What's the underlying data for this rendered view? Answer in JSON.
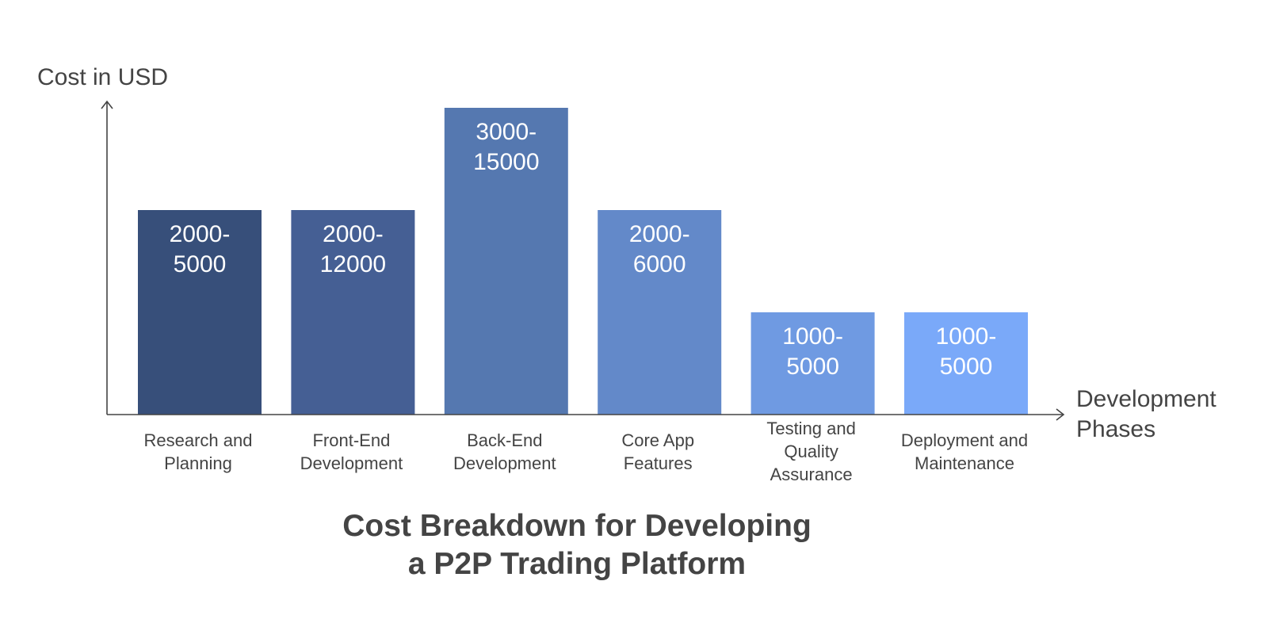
{
  "chart_data": {
    "type": "bar",
    "title": "Cost Breakdown for Developing a P2P Trading Platform",
    "title_lines": [
      "Cost Breakdown for Developing",
      "a P2P Trading Platform"
    ],
    "ylabel": "Cost in USD",
    "xlabel": "Development Phases",
    "xlabel_lines": [
      "Development",
      "Phases"
    ],
    "ylim": [
      0,
      15000
    ],
    "grid": false,
    "categories": [
      "Research and Planning",
      "Front-End Development",
      "Back-End Development",
      "Core App Features",
      "Testing and Quality Assurance",
      "Deployment and Maintenance"
    ],
    "category_lines": [
      [
        "Research and",
        "Planning"
      ],
      [
        "Front-End",
        "Development"
      ],
      [
        "Back-End",
        "Development"
      ],
      [
        "Core App",
        "Features"
      ],
      [
        "Testing and",
        "Quality",
        "Assurance"
      ],
      [
        "Deployment and",
        "Maintenance"
      ]
    ],
    "ranges": [
      [
        2000,
        5000
      ],
      [
        2000,
        12000
      ],
      [
        3000,
        15000
      ],
      [
        2000,
        6000
      ],
      [
        1000,
        5000
      ],
      [
        1000,
        5000
      ]
    ],
    "value_labels": [
      [
        "2000-",
        "5000"
      ],
      [
        "2000-",
        "12000"
      ],
      [
        "3000-",
        "15000"
      ],
      [
        "2000-",
        "6000"
      ],
      [
        "1000-",
        "5000"
      ],
      [
        "1000-",
        "5000"
      ]
    ],
    "relative_heights": [
      2,
      2,
      3,
      2,
      1,
      1
    ],
    "colors": [
      "#374f7a",
      "#455f94",
      "#5578b0",
      "#6389c9",
      "#6f9ae2",
      "#7aa9f9"
    ],
    "axis_color": "#444444",
    "label_color": "#444444"
  }
}
